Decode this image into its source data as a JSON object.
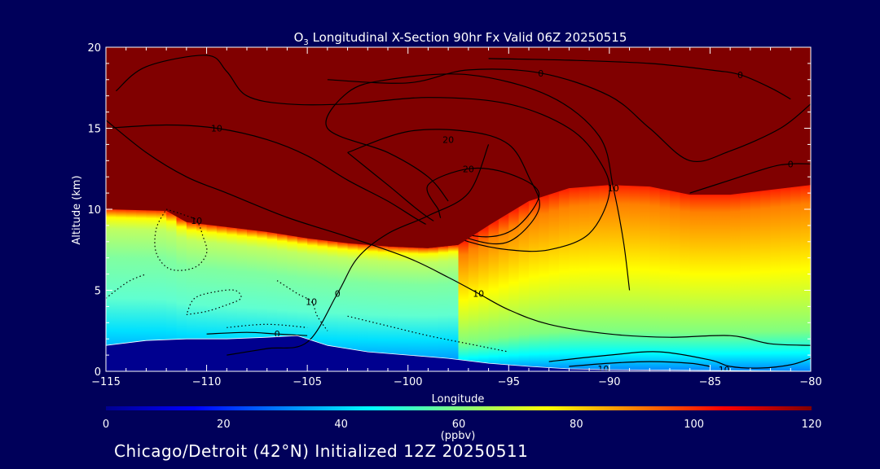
{
  "chart_data": {
    "type": "heatmap",
    "title": {
      "prefix": "O",
      "subscript": "3",
      "rest": " Longitudinal X-Section 90hr  Fx Valid 06Z 20250515"
    },
    "xlabel": "Longitude",
    "ylabel": "Altitude (km)",
    "xlim": [
      -115,
      -80
    ],
    "ylim": [
      0,
      20
    ],
    "xticks": [
      -115,
      -110,
      -105,
      -100,
      -95,
      -90,
      -85,
      -80
    ],
    "xtick_labels": [
      "−115",
      "−110",
      "−105",
      "−100",
      "−95",
      "−90",
      "−85",
      "−80"
    ],
    "yticks": [
      0,
      5,
      10,
      15,
      20
    ],
    "ytick_labels": [
      "0",
      "5",
      "10",
      "15",
      "20"
    ],
    "colorbar": {
      "label": "(ppbv)",
      "range": [
        0,
        120
      ],
      "ticks": [
        0,
        20,
        40,
        60,
        80,
        100,
        120
      ],
      "tick_labels": [
        "0",
        "20",
        "40",
        "60",
        "80",
        "100",
        "120"
      ]
    },
    "colormap": [
      "#00008f",
      "#0000ff",
      "#0080ff",
      "#00ffff",
      "#80ff80",
      "#ffff00",
      "#ff8000",
      "#ff0000",
      "#800000"
    ],
    "background": "#00005a",
    "field_description": "ozone mixing ratio; saturated (>=120 ppbv) above tropopause ~10 km in west, ~12 km in east; tropopause fold near -98 to -95",
    "tropopause_km": [
      [
        -115,
        10.0
      ],
      [
        -112,
        9.9
      ],
      [
        -111,
        9.2
      ],
      [
        -109,
        8.9
      ],
      [
        -107,
        8.6
      ],
      [
        -105,
        8.2
      ],
      [
        -103,
        7.9
      ],
      [
        -101,
        7.7
      ],
      [
        -99,
        7.6
      ],
      [
        -97.5,
        7.8
      ],
      [
        -96,
        9.0
      ],
      [
        -94,
        10.5
      ],
      [
        -92,
        11.3
      ],
      [
        -90,
        11.5
      ],
      [
        -88,
        11.4
      ],
      [
        -86,
        10.9
      ],
      [
        -84,
        10.9
      ],
      [
        -82,
        11.2
      ],
      [
        -80,
        11.5
      ]
    ],
    "surface_km": [
      [
        -115,
        1.6
      ],
      [
        -113,
        1.9
      ],
      [
        -111,
        2.0
      ],
      [
        -109,
        2.0
      ],
      [
        -107,
        2.1
      ],
      [
        -105.5,
        2.2
      ],
      [
        -104,
        1.6
      ],
      [
        -102,
        1.2
      ],
      [
        -100,
        1.0
      ],
      [
        -98,
        0.8
      ],
      [
        -96,
        0.5
      ],
      [
        -94,
        0.3
      ],
      [
        -92,
        0.15
      ],
      [
        -90,
        0.1
      ],
      [
        -85,
        0.05
      ],
      [
        -80,
        0.0
      ]
    ],
    "contours": [
      {
        "label": "0",
        "label_at": [
          -103.5,
          4.8
        ],
        "points": [
          [
            -109,
            1.0
          ],
          [
            -107,
            1.4
          ],
          [
            -105,
            1.8
          ],
          [
            -103.5,
            4.8
          ],
          [
            -102.5,
            7.0
          ],
          [
            -101,
            8.5
          ],
          [
            -99,
            9.6
          ],
          [
            -97,
            11.0
          ],
          [
            -96,
            14.0
          ]
        ]
      },
      {
        "label": "0",
        "label_at": [
          -106.5,
          2.3
        ],
        "points": [
          [
            -110,
            2.3
          ],
          [
            -108,
            2.4
          ],
          [
            -106.5,
            2.3
          ],
          [
            -105,
            2.2
          ]
        ]
      },
      {
        "label": "10",
        "label_at": [
          -96.5,
          4.8
        ],
        "points": [
          [
            -115,
            15.5
          ],
          [
            -113,
            13.5
          ],
          [
            -111,
            12.0
          ],
          [
            -109,
            11.0
          ],
          [
            -106,
            9.5
          ],
          [
            -103,
            8.3
          ],
          [
            -100,
            7.0
          ],
          [
            -98,
            5.8
          ],
          [
            -96.5,
            4.8
          ],
          [
            -95,
            3.8
          ],
          [
            -93,
            2.9
          ],
          [
            -90,
            2.3
          ],
          [
            -87,
            2.1
          ],
          [
            -84,
            2.2
          ],
          [
            -82,
            1.7
          ],
          [
            -80,
            1.6
          ]
        ]
      },
      {
        "label": "10",
        "label_at": [
          -109.5,
          15.0
        ],
        "points": [
          [
            -115,
            15.0
          ],
          [
            -112,
            15.2
          ],
          [
            -109.5,
            15.0
          ],
          [
            -107,
            14.3
          ],
          [
            -105,
            13.3
          ],
          [
            -103,
            11.8
          ],
          [
            -101,
            10.5
          ],
          [
            -99,
            9.0
          ],
          [
            -97,
            8.0
          ],
          [
            -95,
            7.5
          ],
          [
            -93,
            7.5
          ],
          [
            -91,
            8.5
          ],
          [
            -90,
            11.0
          ],
          [
            -90.5,
            13.0
          ],
          [
            -92,
            15.0
          ],
          [
            -95,
            16.5
          ],
          [
            -99,
            16.9
          ],
          [
            -103,
            16.5
          ],
          [
            -106,
            16.5
          ],
          [
            -108,
            17.0
          ],
          [
            -109,
            18.5
          ],
          [
            -110,
            19.5
          ],
          [
            -113,
            18.8
          ],
          [
            -114.5,
            17.3
          ]
        ]
      },
      {
        "label": "10",
        "label_at": [
          -89.8,
          11.3
        ],
        "points": [
          [
            -89.0,
            5.0
          ],
          [
            -89.3,
            8.0
          ],
          [
            -89.8,
            11.3
          ],
          [
            -90.5,
            14.5
          ],
          [
            -93,
            17.0
          ],
          [
            -97,
            18.3
          ],
          [
            -101,
            18.0
          ],
          [
            -103,
            17.2
          ],
          [
            -104,
            15.0
          ],
          [
            -101,
            13.5
          ],
          [
            -99,
            12.0
          ],
          [
            -98,
            10.5
          ]
        ]
      },
      {
        "label": "10",
        "label_at": [
          -84.3,
          0.1
        ],
        "points": [
          [
            -93,
            0.6
          ],
          [
            -90,
            1.0
          ],
          [
            -87.5,
            1.2
          ],
          [
            -85,
            0.7
          ],
          [
            -84,
            0.3
          ],
          [
            -82.5,
            0.2
          ],
          [
            -81,
            0.4
          ],
          [
            -80,
            0.8
          ]
        ]
      },
      {
        "label": "10",
        "label_at": [
          -90.3,
          0.15
        ],
        "points": [
          [
            -92,
            0.3
          ],
          [
            -90,
            0.5
          ],
          [
            -88,
            0.6
          ],
          [
            -86,
            0.5
          ],
          [
            -85,
            0.3
          ]
        ]
      },
      {
        "label": "20",
        "label_at": [
          -97.0,
          12.5
        ],
        "points": [
          [
            -98.5,
            10.0
          ],
          [
            -99,
            11.5
          ],
          [
            -97,
            12.5
          ],
          [
            -95,
            12.2
          ],
          [
            -93.5,
            11.0
          ],
          [
            -94.5,
            9.0
          ],
          [
            -96,
            8.3
          ],
          [
            -98,
            8.8
          ],
          [
            -98.5,
            10.0
          ]
        ]
      },
      {
        "label": "20",
        "label_at": [
          -98.0,
          14.3
        ],
        "points": [
          [
            -103,
            13.5
          ],
          [
            -100,
            14.8
          ],
          [
            -97,
            14.8
          ],
          [
            -95,
            14.0
          ],
          [
            -94,
            12.0
          ],
          [
            -93.5,
            10.0
          ],
          [
            -95,
            8.0
          ],
          [
            -97,
            8.2
          ],
          [
            -99,
            9.5
          ],
          [
            -101,
            11.5
          ],
          [
            -103,
            13.5
          ]
        ]
      },
      {
        "label": "0",
        "label_at": [
          -93.4,
          18.4
        ],
        "points": [
          [
            -104,
            18.0
          ],
          [
            -100,
            17.8
          ],
          [
            -97,
            18.6
          ],
          [
            -93.4,
            18.4
          ],
          [
            -90,
            17.0
          ],
          [
            -88,
            15.0
          ],
          [
            -86,
            13.0
          ],
          [
            -84,
            13.6
          ],
          [
            -81.5,
            15.0
          ],
          [
            -80,
            16.5
          ]
        ]
      },
      {
        "label": "0",
        "label_at": [
          -81.0,
          12.8
        ],
        "points": [
          [
            -86,
            11.0
          ],
          [
            -84,
            11.8
          ],
          [
            -82,
            12.6
          ],
          [
            -81,
            12.8
          ],
          [
            -80,
            12.8
          ]
        ]
      },
      {
        "label": "0",
        "label_at": [
          -83.5,
          18.3
        ],
        "points": [
          [
            -96,
            19.3
          ],
          [
            -92,
            19.2
          ],
          [
            -88,
            19.0
          ],
          [
            -85,
            18.6
          ],
          [
            -83.5,
            18.3
          ],
          [
            -82,
            17.5
          ],
          [
            -81,
            16.8
          ]
        ]
      }
    ],
    "dotted_contours": [
      {
        "label": "10",
        "label_at": [
          -110.5,
          9.3
        ],
        "points": [
          [
            -112,
            10.0
          ],
          [
            -111,
            9.6
          ],
          [
            -110.5,
            9.3
          ],
          [
            -110.2,
            8.4
          ],
          [
            -110,
            7.3
          ],
          [
            -110.6,
            6.4
          ],
          [
            -111.8,
            6.3
          ],
          [
            -112.5,
            7.3
          ],
          [
            -112.5,
            8.8
          ],
          [
            -112,
            10.0
          ]
        ]
      },
      {
        "label": "10",
        "label_at": [
          -104.8,
          4.3
        ],
        "points": [
          [
            -106.5,
            5.6
          ],
          [
            -105.5,
            4.8
          ],
          [
            -104.8,
            4.3
          ],
          [
            -104.5,
            3.4
          ],
          [
            -104.0,
            2.5
          ]
        ]
      },
      {
        "label": "",
        "label_at": [
          -109.5,
          4.2
        ],
        "points": [
          [
            -111,
            3.5
          ],
          [
            -110,
            3.7
          ],
          [
            -109,
            4.1
          ],
          [
            -108.3,
            4.5
          ],
          [
            -108.6,
            5.0
          ],
          [
            -109.6,
            4.9
          ],
          [
            -110.6,
            4.5
          ],
          [
            -111,
            3.5
          ]
        ]
      },
      {
        "label": "",
        "label_at": [
          -114.5,
          5.3
        ],
        "points": [
          [
            -115,
            4.5
          ],
          [
            -114.5,
            5.0
          ],
          [
            -113.8,
            5.6
          ],
          [
            -113.0,
            6.0
          ]
        ]
      },
      {
        "label": "",
        "label_at": [
          -100.0,
          2.2
        ],
        "points": [
          [
            -103,
            3.4
          ],
          [
            -101,
            2.8
          ],
          [
            -99,
            2.2
          ],
          [
            -97,
            1.7
          ],
          [
            -95,
            1.2
          ]
        ]
      },
      {
        "label": "",
        "label_at": [
          -105.5,
          1.9
        ],
        "points": [
          [
            -109,
            2.7
          ],
          [
            -107,
            2.9
          ],
          [
            -105,
            2.7
          ]
        ]
      }
    ]
  },
  "footer": "Chicago/Detroit (42°N) Initialized 12Z 20250511"
}
